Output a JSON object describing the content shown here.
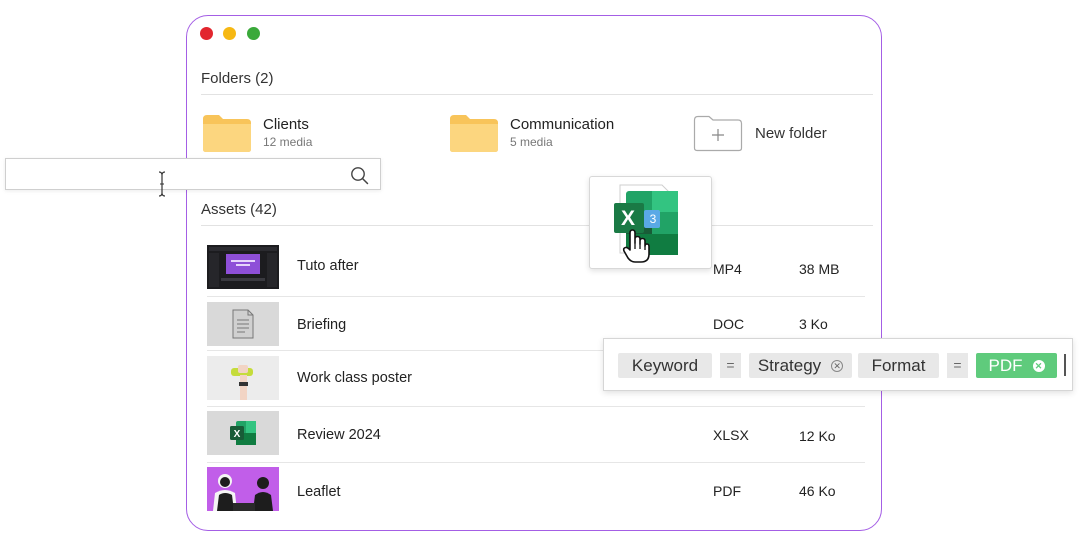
{
  "folders_section": {
    "title": "Folders (2)"
  },
  "folders": [
    {
      "name": "Clients",
      "count": "12 media"
    },
    {
      "name": "Communication",
      "count": "5 media"
    }
  ],
  "new_folder": {
    "label": "New folder",
    "icon": "plus-icon"
  },
  "assets_section": {
    "title": "Assets (42)"
  },
  "assets": [
    {
      "name": "Tuto after",
      "format": "MP4",
      "size": "38 MB",
      "thumb": "video-thumbnail"
    },
    {
      "name": "Briefing",
      "format": "DOC",
      "size": "3 Ko",
      "thumb": "document-icon"
    },
    {
      "name": "Work class poster",
      "format": "",
      "size": "",
      "thumb": "poster-photo"
    },
    {
      "name": "Review 2024",
      "format": "XLSX",
      "size": "12 Ko",
      "thumb": "excel-icon"
    },
    {
      "name": "Leaflet",
      "format": "PDF",
      "size": "46 Ko",
      "thumb": "leaflet-photo"
    }
  ],
  "search": {
    "value": "",
    "placeholder": "",
    "icon": "search-icon"
  },
  "drag": {
    "badge": "3",
    "icon": "excel-file-icon",
    "cursor": "hand-grab-cursor"
  },
  "filter": {
    "keyword_label": "Keyword",
    "eq1": "=",
    "strategy_label": "Strategy",
    "format_label": "Format",
    "eq2": "=",
    "pdf_label": "PDF"
  },
  "colors": {
    "window_border": "#a45ee5",
    "folder": "#fcd37a",
    "pdf_chip": "#5fcb7c",
    "excel_green": "#1f7a44"
  }
}
